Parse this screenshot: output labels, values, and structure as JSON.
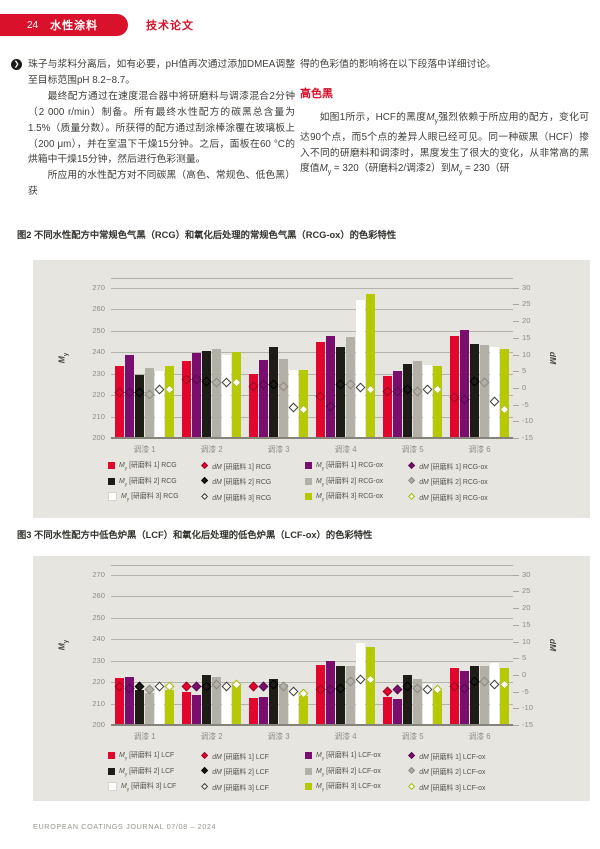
{
  "header": {
    "page_number": "24",
    "section": "水性涂料",
    "category": "技术论文"
  },
  "article": {
    "left_column": {
      "p1": "珠子与浆料分离后，如有必要，pH值再次通过添加DMEA调整至目标范围pH 8.2~8.7。",
      "p2": "最终配方通过在速度混合器中将研磨料与调漆混合2分钟（2 000 r/min）制备。所有最终水性配方的碳黑总含量为1.5%（质量分数）。所获得的配方通过刮涂棒涂覆在玻璃板上（200 μm），并在室温下干燥15分钟。之后，面板在60 °C的烘箱中干燥15分钟，然后进行色彩测量。",
      "p3": "所应用的水性配方对不同碳黑（高色、常规色、低色黑）获"
    },
    "right_column": {
      "p1": "得的色彩值的影响将在以下段落中详细讨论。",
      "heading": "高色黑",
      "p2": "如图1所示，HCF的黑度M_y强烈依赖于所应用的配方，变化可达90个点，而5个点的差异人眼已经可见。同一种碳黑（HCF）掺入不同的研磨料和调漆时，黑度发生了很大的变化，从非常高的黑度值M_y = 320（研磨料2/调漆2）到M_y = 230（研"
    }
  },
  "figures": [
    {
      "caption": "图2 不同水性配方中常规色气黑（RCG）和氧化后处理的常规色气黑（RCG-ox）的色彩特性"
    },
    {
      "caption": "图3 不同水性配方中低色炉黑（LCF）和氧化后处理的低色炉黑（LCF-ox）的色彩特性"
    }
  ],
  "footer": {
    "text": "EUROPEAN COATINGS JOURNAL 07/08 – 2024"
  },
  "colors": {
    "accent_red": "#d9112a",
    "panel_bg": "#e7e5e0",
    "bar_red": "#e2062f",
    "bar_purple": "#7a0e6e",
    "bar_black": "#1d1c17",
    "bar_gray": "#b2b0a7",
    "bar_white": "#ffffff",
    "bar_green": "#b5c904"
  },
  "chart_data": [
    {
      "type": "bar",
      "title": "图2 不同水性配方中常规色气黑（RCG）和氧化后处理的常规色气黑（RCG-ox）的色彩特性",
      "categories": [
        "调漆 1",
        "调漆 2",
        "调漆 3",
        "调漆 4",
        "调漆 5",
        "调漆 6"
      ],
      "left_axis": {
        "label": "M_y",
        "min": 200,
        "max": 270,
        "ticks": [
          270,
          260,
          250,
          240,
          230,
          220,
          210,
          200
        ]
      },
      "right_axis": {
        "label": "dM",
        "min": -15,
        "max": 30,
        "ticks": [
          30,
          25,
          20,
          15,
          10,
          5,
          0,
          -5,
          -10,
          -15
        ]
      },
      "bar_series": [
        {
          "name": "M_y [研磨料 1] RCG",
          "color": "#e2062f",
          "values": [
            233.5,
            236.0,
            230.0,
            244.5,
            229.0,
            247.5
          ]
        },
        {
          "name": "M_y [研磨料 1] RCG-ox",
          "color": "#7a0e6e",
          "values": [
            238.5,
            239.5,
            236.5,
            247.5,
            231.0,
            250.5
          ]
        },
        {
          "name": "M_y [研磨料 2] RCG",
          "color": "#1d1c17",
          "values": [
            229.5,
            240.5,
            242.5,
            242.5,
            234.5,
            244.0
          ]
        },
        {
          "name": "M_y [研磨料 2] RCG-ox",
          "color": "#b2b0a7",
          "values": [
            232.5,
            241.5,
            237.0,
            247.0,
            236.0,
            243.5
          ]
        },
        {
          "name": "M_y [研磨料 3] RCG",
          "color": "#ffffff",
          "values": [
            231.0,
            238.5,
            231.5,
            264.5,
            234.0,
            242.5
          ]
        },
        {
          "name": "M_y [研磨料 3] RCG-ox",
          "color": "#b5c904",
          "values": [
            233.5,
            240.0,
            231.5,
            267.0,
            233.5,
            241.5
          ]
        }
      ],
      "marker_series": [
        {
          "name": "dM [研磨料 1] RCG",
          "fill": "#e2062f",
          "stroke": "#9c0322",
          "values": [
            -1.5,
            2.5,
            0.5,
            -2.5,
            -1.0,
            -3.0
          ]
        },
        {
          "name": "dM [研磨料 1] RCG-ox",
          "fill": "#7a0e6e",
          "stroke": "#56084e",
          "values": [
            -1.5,
            2.5,
            1.0,
            -5.5,
            -1.0,
            -3.5
          ]
        },
        {
          "name": "dM [研磨料 2] RCG",
          "fill": "#1d1c17",
          "stroke": "#000000",
          "values": [
            -1.5,
            2.0,
            1.0,
            1.0,
            -0.5,
            2.0
          ]
        },
        {
          "name": "dM [研磨料 2] RCG-ox",
          "fill": "#b2b0a7",
          "stroke": "#8c8a80",
          "values": [
            -2.0,
            1.5,
            0.5,
            1.0,
            -1.0,
            1.5
          ]
        },
        {
          "name": "dM [研磨料 3] RCG",
          "fill": "#ffffff",
          "stroke": "#3c3b35",
          "values": [
            -0.5,
            1.5,
            -6.0,
            0.0,
            -0.5,
            -4.0
          ]
        },
        {
          "name": "dM [研磨料 3] RCG-ox",
          "fill": "#ffffff",
          "stroke": "#a6ba00",
          "values": [
            -0.5,
            1.5,
            -6.5,
            -0.5,
            -0.5,
            -6.5
          ]
        }
      ]
    },
    {
      "type": "bar",
      "title": "图3 不同水性配方中低色炉黑（LCF）和氧化后处理的低色炉黑（LCF-ox）的色彩特性",
      "categories": [
        "调漆 1",
        "调漆 2",
        "调漆 3",
        "调漆 4",
        "调漆 5",
        "调漆 6"
      ],
      "left_axis": {
        "label": "M_y",
        "min": 200,
        "max": 270,
        "ticks": [
          270,
          260,
          250,
          240,
          230,
          220,
          210,
          200
        ]
      },
      "right_axis": {
        "label": "dM",
        "min": -15,
        "max": 30,
        "ticks": [
          30,
          25,
          20,
          15,
          10,
          5,
          0,
          -5,
          -10,
          -15
        ]
      },
      "bar_series": [
        {
          "name": "M_y [研磨料 1] LCF",
          "color": "#e2062f",
          "values": [
            222.0,
            215.5,
            212.5,
            228.0,
            213.0,
            226.5
          ]
        },
        {
          "name": "M_y [研磨料 1] LCF-ox",
          "color": "#7a0e6e",
          "values": [
            222.5,
            214.0,
            213.0,
            230.0,
            212.0,
            225.0
          ]
        },
        {
          "name": "M_y [研磨料 2] LCF",
          "color": "#1d1c17",
          "values": [
            216.5,
            223.5,
            221.5,
            227.5,
            223.5,
            227.5
          ]
        },
        {
          "name": "M_y [研磨料 2] LCF-ox",
          "color": "#b2b0a7",
          "values": [
            215.0,
            222.5,
            219.0,
            227.5,
            221.5,
            227.5
          ]
        },
        {
          "name": "M_y [研磨料 3] LCF",
          "color": "#ffffff",
          "values": [
            219.5,
            218.5,
            216.0,
            238.0,
            219.0,
            229.0
          ]
        },
        {
          "name": "M_y [研磨料 3] LCF-ox",
          "color": "#b5c904",
          "values": [
            216.5,
            219.0,
            213.5,
            236.5,
            216.0,
            226.5
          ]
        }
      ],
      "marker_series": [
        {
          "name": "dM [研磨料 1] LCF",
          "fill": "#e2062f",
          "stroke": "#9c0322",
          "values": [
            -3.5,
            -3.5,
            -3.5,
            -4.5,
            -5.0,
            -3.5
          ]
        },
        {
          "name": "dM [研磨料 1] LCF-ox",
          "fill": "#7a0e6e",
          "stroke": "#56084e",
          "values": [
            -4.0,
            -3.5,
            -3.5,
            -4.5,
            -4.5,
            -4.0
          ]
        },
        {
          "name": "dM [研磨料 2] LCF",
          "fill": "#1d1c17",
          "stroke": "#000000",
          "values": [
            -3.5,
            -3.5,
            -3.0,
            -4.0,
            -3.5,
            -2.0
          ]
        },
        {
          "name": "dM [研磨料 2] LCF-ox",
          "fill": "#b2b0a7",
          "stroke": "#8c8a80",
          "values": [
            -4.5,
            -3.0,
            -3.5,
            -2.0,
            -4.0,
            -2.0
          ]
        },
        {
          "name": "dM [研磨料 3] LCF",
          "fill": "#ffffff",
          "stroke": "#3c3b35",
          "values": [
            -3.5,
            -3.5,
            -5.0,
            -1.5,
            -4.5,
            -3.0
          ]
        },
        {
          "name": "dM [研磨料 3] LCF-ox",
          "fill": "#ffffff",
          "stroke": "#a6ba00",
          "values": [
            -3.5,
            -3.0,
            -5.5,
            -1.5,
            -4.5,
            -3.0
          ]
        }
      ]
    }
  ]
}
